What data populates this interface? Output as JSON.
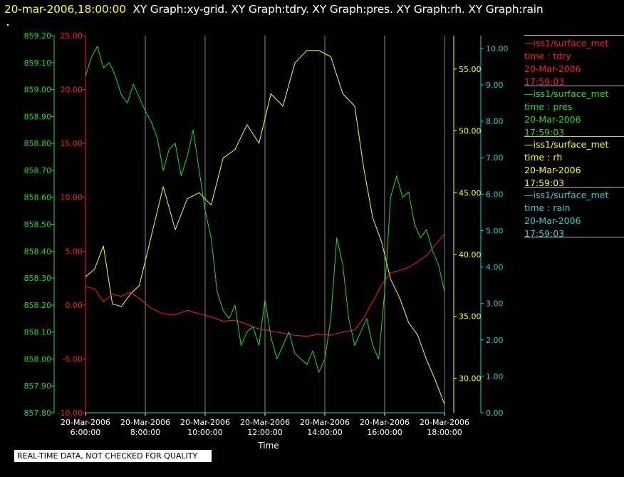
{
  "header": {
    "timestamp": "20-mar-2006,18:00:00",
    "titles": "XY Graph:xy-grid.  XY Graph:tdry.  XY Graph:pres.  XY Graph:rh.  XY Graph:rain"
  },
  "notice": "REAL-TIME DATA, NOT CHECKED FOR QUALITY",
  "colors": {
    "tdry": "#ff2020",
    "pres": "#22dd22",
    "rh": "#ffff22",
    "rain": "#33cccc",
    "grid": "#888888",
    "text": "#ffffff"
  },
  "legend": [
    {
      "name": "iss1/surface_met",
      "var": "time : tdry",
      "date": "20-Mar-2006",
      "time": "17:59:03",
      "color": "#ff2020"
    },
    {
      "name": "iss1/surface_met",
      "var": "time : pres",
      "date": "20-Mar-2006",
      "time": "17:59:03",
      "color": "#22dd22"
    },
    {
      "name": "iss1/surface_met",
      "var": "time : rh",
      "date": "20-Mar-2006",
      "time": "17:59:03",
      "color": "#ffff22"
    },
    {
      "name": "iss1/surface_met",
      "var": "time : rain",
      "date": "20-Mar-2006",
      "time": "17:59:03",
      "color": "#33cccc"
    }
  ],
  "chart_data": {
    "type": "line",
    "xlabel": "Time",
    "x_ticks": [
      {
        "date": "20-Mar-2006",
        "time": "6:00:00",
        "hour": 6
      },
      {
        "date": "20-Mar-2006",
        "time": "8:00:00",
        "hour": 8
      },
      {
        "date": "20-Mar-2006",
        "time": "10:00:00",
        "hour": 10
      },
      {
        "date": "20-Mar-2006",
        "time": "12:00:00",
        "hour": 12
      },
      {
        "date": "20-Mar-2006",
        "time": "14:00:00",
        "hour": 14
      },
      {
        "date": "20-Mar-2006",
        "time": "16:00:00",
        "hour": 16
      },
      {
        "date": "20-Mar-2006",
        "time": "18:00:00",
        "hour": 18
      }
    ],
    "xlim": [
      6,
      18
    ],
    "grid": "vertical",
    "axes": [
      {
        "id": "pres",
        "side": "left-outer",
        "ylim": [
          857.8,
          859.2
        ],
        "ticks": [
          "857.80",
          "857.90",
          "858.00",
          "858.10",
          "858.20",
          "858.30",
          "858.40",
          "858.50",
          "858.60",
          "858.70",
          "858.80",
          "858.90",
          "859.00",
          "859.10",
          "859.20"
        ]
      },
      {
        "id": "tdry",
        "side": "left-inner",
        "ylim": [
          -10,
          25
        ],
        "ticks": [
          "-10.00",
          "-5.00",
          "0.00",
          "5.00",
          "10.00",
          "15.00",
          "20.00",
          "25.00"
        ]
      },
      {
        "id": "rh",
        "side": "right-inner",
        "ylim": [
          27.2,
          57.7
        ],
        "ticks": [
          "30.00",
          "35.00",
          "40.00",
          "45.00",
          "50.00",
          "55.00"
        ]
      },
      {
        "id": "rain",
        "side": "right-outer",
        "ylim": [
          0,
          10.35
        ],
        "ticks": [
          "0.00",
          "1.00",
          "2.00",
          "3.00",
          "4.00",
          "5.00",
          "6.00",
          "7.00",
          "8.00",
          "9.00",
          "10.00"
        ]
      }
    ],
    "series": [
      {
        "id": "tdry",
        "axis": "tdry",
        "x": [
          6,
          6.3,
          6.6,
          6.9,
          7.2,
          7.5,
          7.8,
          8.2,
          8.6,
          9,
          9.4,
          9.8,
          10.2,
          10.6,
          11,
          11.4,
          11.8,
          12.2,
          12.6,
          13,
          13.4,
          13.8,
          14.2,
          14.6,
          15,
          15.3,
          15.6,
          15.9,
          16.2,
          16.5,
          16.8,
          17.1,
          17.4,
          17.7,
          18
        ],
        "y": [
          1.7,
          1.5,
          0.3,
          1.0,
          0.8,
          1.2,
          0.6,
          -0.3,
          -0.8,
          -0.9,
          -0.5,
          -0.8,
          -1.1,
          -1.5,
          -1.4,
          -1.8,
          -2.2,
          -2.4,
          -2.6,
          -2.8,
          -2.9,
          -2.7,
          -2.8,
          -2.5,
          -2.3,
          -1.2,
          0.3,
          1.9,
          3.0,
          3.2,
          3.5,
          4.0,
          4.6,
          5.6,
          6.6
        ]
      },
      {
        "id": "pres",
        "axis": "pres",
        "x": [
          6,
          6.2,
          6.4,
          6.6,
          6.8,
          7.0,
          7.2,
          7.4,
          7.6,
          7.8,
          8.0,
          8.2,
          8.4,
          8.6,
          8.8,
          9.0,
          9.2,
          9.4,
          9.6,
          9.8,
          10.0,
          10.2,
          10.4,
          10.6,
          10.8,
          11.0,
          11.2,
          11.4,
          11.6,
          11.8,
          12.0,
          12.2,
          12.4,
          12.6,
          12.8,
          13.0,
          13.2,
          13.4,
          13.6,
          13.8,
          14.0,
          14.2,
          14.4,
          14.6,
          14.8,
          15.0,
          15.2,
          15.4,
          15.6,
          15.8,
          16.0,
          16.2,
          16.4,
          16.6,
          16.8,
          17.0,
          17.2,
          17.4,
          17.6,
          17.8,
          18.0
        ],
        "y": [
          859.05,
          859.12,
          859.16,
          859.08,
          859.1,
          859.05,
          858.98,
          858.95,
          859.02,
          858.97,
          858.92,
          858.88,
          858.82,
          858.7,
          858.78,
          858.8,
          858.68,
          858.75,
          858.85,
          858.7,
          858.55,
          858.45,
          858.25,
          858.18,
          858.15,
          858.2,
          858.05,
          858.1,
          858.12,
          858.05,
          858.22,
          858.08,
          858.0,
          858.05,
          858.1,
          858.02,
          858.0,
          857.98,
          858.03,
          857.95,
          858.0,
          858.15,
          858.45,
          858.35,
          858.15,
          858.05,
          858.1,
          858.15,
          858.05,
          858.0,
          858.25,
          858.6,
          858.68,
          858.6,
          858.62,
          858.5,
          858.45,
          858.48,
          858.4,
          858.35,
          858.25
        ]
      },
      {
        "id": "rh",
        "axis": "rh",
        "x": [
          6,
          6.3,
          6.6,
          6.9,
          7.2,
          7.5,
          7.8,
          8.2,
          8.6,
          9,
          9.4,
          9.8,
          10.2,
          10.6,
          11,
          11.4,
          11.8,
          12.2,
          12.6,
          13,
          13.4,
          13.8,
          14.2,
          14.6,
          15,
          15.3,
          15.6,
          15.9,
          16.2,
          16.5,
          16.8,
          17.1,
          17.4,
          17.7,
          18
        ],
        "y": [
          38.2,
          38.8,
          40.7,
          36.0,
          35.8,
          36.8,
          37.5,
          41.5,
          45.5,
          42.0,
          44.5,
          45.0,
          44.0,
          47.8,
          48.5,
          50.5,
          49.0,
          53.0,
          52.0,
          55.5,
          56.5,
          56.5,
          56.0,
          53.0,
          52.0,
          47.0,
          43.0,
          41.0,
          38.0,
          36.5,
          34.5,
          33.5,
          31.5,
          29.8,
          27.9
        ]
      },
      {
        "id": "rain",
        "axis": "rain",
        "x": [
          6,
          18
        ],
        "y": [
          0,
          0
        ]
      }
    ]
  }
}
